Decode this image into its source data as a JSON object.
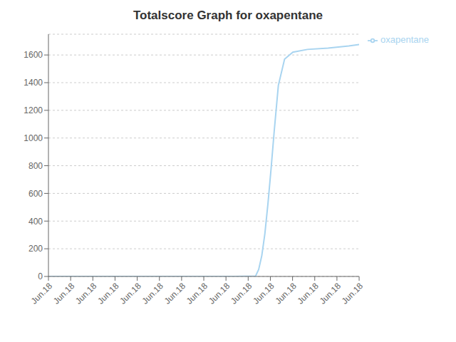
{
  "chart_data": {
    "type": "line",
    "title": "Totalscore Graph for oxapentane",
    "x": [
      0,
      1,
      2,
      3,
      4,
      5,
      6,
      7,
      8,
      9,
      10,
      10.15,
      10.3,
      10.45,
      10.6,
      10.75,
      10.9,
      11.1,
      11.4,
      11.8,
      12.5,
      13.5,
      14.5,
      15
    ],
    "series": [
      {
        "name": "oxapentane",
        "color": "#a8d4f0",
        "values": [
          0,
          0,
          0,
          0,
          0,
          0,
          0,
          0,
          0,
          0,
          3,
          50,
          150,
          310,
          530,
          780,
          1050,
          1380,
          1570,
          1620,
          1640,
          1650,
          1665,
          1675
        ]
      }
    ],
    "xlim": [
      0,
      15
    ],
    "xticks": [
      {
        "value": 0,
        "label": "Jun.18"
      },
      {
        "value": 1.0714285714285714,
        "label": "Jun.18"
      },
      {
        "value": 2.142857142857143,
        "label": "Jun.18"
      },
      {
        "value": 3.2142857142857144,
        "label": "Jun.18"
      },
      {
        "value": 4.285714285714286,
        "label": "Jun.18"
      },
      {
        "value": 5.357142857142857,
        "label": "Jun.18"
      },
      {
        "value": 6.428571428571429,
        "label": "Jun.18"
      },
      {
        "value": 7.5,
        "label": "Jun.18"
      },
      {
        "value": 8.571428571428571,
        "label": "Jun.18"
      },
      {
        "value": 9.642857142857142,
        "label": "Jun.18"
      },
      {
        "value": 10.714285714285714,
        "label": "Jun.18"
      },
      {
        "value": 11.785714285714286,
        "label": "Jun.18"
      },
      {
        "value": 12.857142857142858,
        "label": "Jun.18"
      },
      {
        "value": 13.928571428571429,
        "label": "Jun.18"
      },
      {
        "value": 15,
        "label": "Jun.18"
      }
    ],
    "ylim": [
      0,
      1750
    ],
    "yticks": [
      0,
      200,
      400,
      600,
      800,
      1000,
      1200,
      1400,
      1600
    ],
    "grid": true,
    "legend": "upper right"
  }
}
